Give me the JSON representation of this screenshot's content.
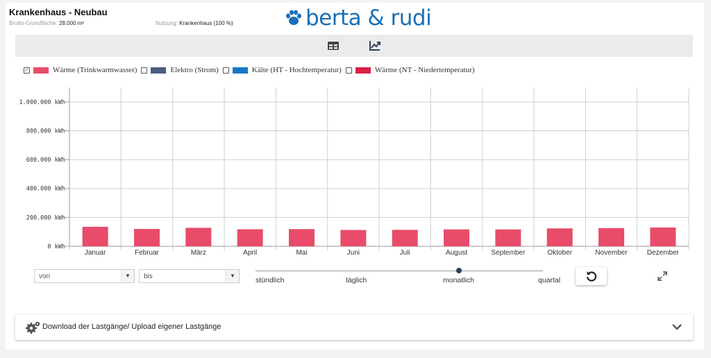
{
  "project": {
    "title": "Krankenhaus - Neubau",
    "area_label": "Brutto-Grundfläche:",
    "area_value": "28.000 m²",
    "usage_label": "Nutzung:",
    "usage_value": "Krankenhaus (100 %)"
  },
  "logo": {
    "text": "berta & rudi",
    "color": "#1a6fb5"
  },
  "toolbar": {
    "table_icon": "table-icon",
    "chart_icon": "line-chart-icon"
  },
  "legend": [
    {
      "label": "Wärme (Trinkwarmwasser)",
      "checked": true,
      "color": "#e84c6a"
    },
    {
      "label": "Elektro (Strom)",
      "checked": false,
      "color": "#4a5f7e"
    },
    {
      "label": "Kälte (HT - Hochtemperatur)",
      "checked": false,
      "color": "#1877c8"
    },
    {
      "label": "Wärme (NT - Niedertemperatur)",
      "checked": false,
      "color": "#dc1f47"
    }
  ],
  "chart_data": {
    "type": "bar",
    "categories": [
      "Januar",
      "Februar",
      "März",
      "April",
      "Mai",
      "Juni",
      "Juli",
      "August",
      "September",
      "Oktober",
      "November",
      "Dezember"
    ],
    "series": [
      {
        "name": "Wärme (Trinkwarmwasser)",
        "color": "#e84c6a",
        "values": [
          135000,
          120000,
          128000,
          118000,
          119000,
          113000,
          114000,
          117000,
          117000,
          124000,
          126000,
          130000
        ]
      }
    ],
    "yticks": [
      0,
      200000,
      400000,
      600000,
      800000,
      1000000
    ],
    "ytick_labels": [
      "0 kWh",
      "200.000 kWh",
      "400.000 kWh",
      "600.000 kWh",
      "800.000 kWh",
      "1.000.000 kWh"
    ],
    "ylim": [
      0,
      1100000
    ],
    "grid": true
  },
  "controls": {
    "from_value": "von",
    "to_value": "bis",
    "resolution_options": [
      "stündlich",
      "täglich",
      "monatlich",
      "quartal"
    ],
    "resolution_selected": "monatlich",
    "reset_icon": "refresh-icon",
    "expand_icon": "expand-icon"
  },
  "accordion": {
    "label": "Download der Lastgänge/ Upload eigener Lastgänge",
    "icon": "gears-icon",
    "toggle_icon": "chevron-down-icon"
  }
}
